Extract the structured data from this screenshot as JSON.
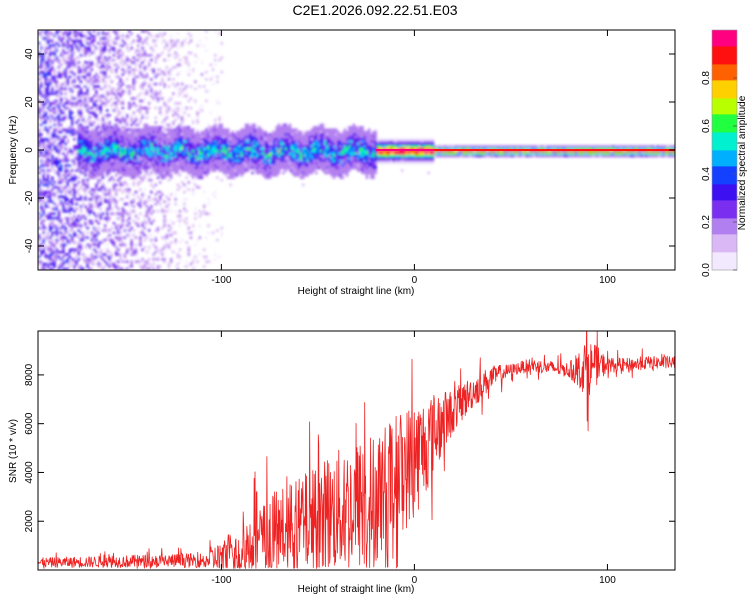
{
  "figure_title": "C2E1.2026.092.22.51.E03",
  "colors": {
    "snr_line": "#ee2222",
    "colormap": [
      "#f3e9ff",
      "#d9b8f5",
      "#b27ff0",
      "#7a2ff0",
      "#3c10f0",
      "#1440ff",
      "#00b0ff",
      "#00f0d0",
      "#20ff40",
      "#b8ff00",
      "#ffd000",
      "#ff6000",
      "#ff1010",
      "#ff0080"
    ]
  },
  "chart_data": [
    {
      "type": "heatmap",
      "name": "spectrogram",
      "xlabel": "Height of straight line (km)",
      "ylabel": "Frequency (Hz)",
      "xlim": [
        -195,
        135
      ],
      "ylim": [
        -50,
        50
      ],
      "xticks": [
        -100,
        0,
        100
      ],
      "xtick_labels": [
        "-100",
        "0",
        "100"
      ],
      "yticks": [
        -40,
        -20,
        0,
        20,
        40
      ],
      "ytick_labels": [
        "-40",
        "-20",
        "0",
        "20",
        "40"
      ],
      "colorbar": {
        "label": "Normalized spectral amplitude",
        "range": [
          0,
          1
        ],
        "ticks": [
          0.0,
          0.2,
          0.4,
          0.6,
          0.8
        ],
        "tick_labels": [
          "0.0",
          "0.2",
          "0.4",
          "0.6",
          "0.8"
        ]
      },
      "ridge": {
        "center_hz": 0,
        "segments": [
          {
            "x_start": -175,
            "x_end": -20,
            "half_width_hz": 6,
            "peak_amplitude": 0.45
          },
          {
            "x_start": -20,
            "x_end": 10,
            "half_width_hz": 3,
            "peak_amplitude": 0.95
          },
          {
            "x_start": 10,
            "x_end": 135,
            "half_width_hz": 1.5,
            "peak_amplitude": 0.9
          }
        ],
        "noise_region": {
          "x_start": -195,
          "x_end": -100,
          "amplitude": 0.15
        }
      }
    },
    {
      "type": "line",
      "name": "snr",
      "xlabel": "Height of straight line (km)",
      "ylabel": "SNR (10 * v/v)",
      "xlim": [
        -195,
        135
      ],
      "ylim": [
        0,
        9800
      ],
      "xticks": [
        -100,
        0,
        100
      ],
      "xtick_labels": [
        "-100",
        "0",
        "100"
      ],
      "yticks": [
        2000,
        4000,
        6000,
        8000
      ],
      "ytick_labels": [
        "2000",
        "4000",
        "6000",
        "8000"
      ],
      "envelope": {
        "x": [
          -195,
          -150,
          -110,
          -100,
          -90,
          -80,
          -70,
          -60,
          -50,
          -40,
          -30,
          -20,
          -10,
          0,
          10,
          20,
          30,
          40,
          50,
          60,
          70,
          80,
          85,
          90,
          95,
          100,
          110,
          120,
          135
        ],
        "y": [
          300,
          350,
          400,
          500,
          800,
          1200,
          1600,
          1800,
          2100,
          2400,
          2600,
          3000,
          3800,
          4500,
          5600,
          6500,
          7300,
          7900,
          8200,
          8400,
          8300,
          8200,
          8200,
          8300,
          8400,
          8400,
          8400,
          8500,
          8500
        ]
      },
      "noise_amplitude": {
        "x": [
          -195,
          -110,
          -90,
          -60,
          -30,
          0,
          20,
          50,
          80,
          90,
          100,
          135
        ],
        "y": [
          200,
          300,
          1200,
          2000,
          2800,
          2500,
          900,
          250,
          300,
          1200,
          300,
          250
        ]
      }
    }
  ]
}
